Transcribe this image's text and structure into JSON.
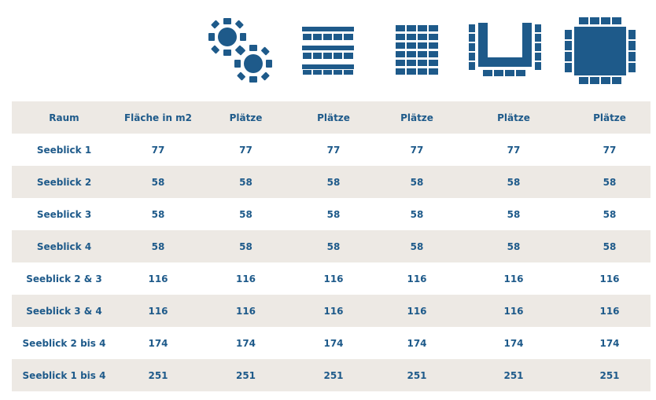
{
  "seating_icons": [
    {
      "icon": "banquet-round-tables-icon"
    },
    {
      "icon": "classroom-seating-icon"
    },
    {
      "icon": "theater-seating-icon"
    },
    {
      "icon": "u-shape-seating-icon"
    },
    {
      "icon": "boardroom-block-seating-icon"
    }
  ],
  "table": {
    "headers": [
      "Raum",
      "Fläche in m2",
      "Plätze",
      "Plätze",
      "Plätze",
      "Plätze",
      "Plätze"
    ],
    "rows": [
      [
        "Seeblick 1",
        "77",
        "77",
        "77",
        "77",
        "77",
        "77"
      ],
      [
        "Seeblick 2",
        "58",
        "58",
        "58",
        "58",
        "58",
        "58"
      ],
      [
        "Seeblick 3",
        "58",
        "58",
        "58",
        "58",
        "58",
        "58"
      ],
      [
        "Seeblick 4",
        "58",
        "58",
        "58",
        "58",
        "58",
        "58"
      ],
      [
        "Seeblick 2 & 3",
        "116",
        "116",
        "116",
        "116",
        "116",
        "116"
      ],
      [
        "Seeblick 3 & 4",
        "116",
        "116",
        "116",
        "116",
        "116",
        "116"
      ],
      [
        "Seeblick 2 bis 4",
        "174",
        "174",
        "174",
        "174",
        "174",
        "174"
      ],
      [
        "Seeblick 1 bis 4",
        "251",
        "251",
        "251",
        "251",
        "251",
        "251"
      ]
    ]
  },
  "colors": {
    "accent": "#1e5a8a",
    "stripe": "#ede9e4"
  }
}
